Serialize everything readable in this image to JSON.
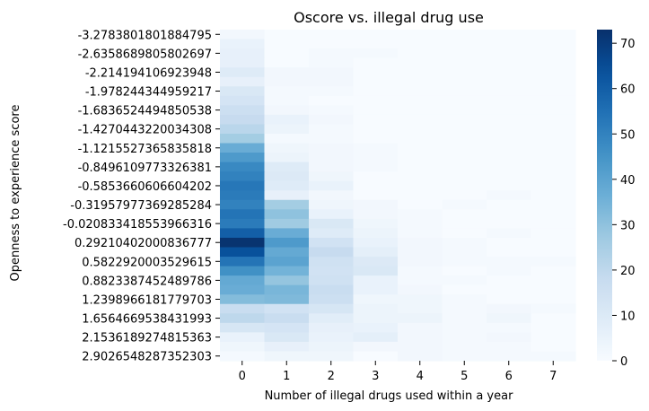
{
  "chart_data": {
    "type": "heatmap",
    "title": "Oscore vs. illegal drug use",
    "xlabel": "Number of illegal drugs used within a year",
    "ylabel": "Openness to experience score",
    "x_categories": [
      "0",
      "1",
      "2",
      "3",
      "4",
      "5",
      "6",
      "7"
    ],
    "y_tick_labels": [
      "-3.2783801801884795",
      "-2.6358689805802697",
      "-2.214194106923948",
      "-1.978244344959217",
      "-1.6836524494850538",
      "-1.4270443220034308",
      "-1.1215527365835818",
      "-0.8496109773326381",
      "-0.5853660606604202",
      "-0.31957977369285284",
      "-0.020833418553966316",
      "0.29210402000836777",
      "0.5822920003529615",
      "0.8823387452489786",
      "1.2398966181779703",
      "1.6564669538431993",
      "2.1536189274815363",
      "2.9026548287352303"
    ],
    "row_count": 35,
    "rows_per_tick": 2,
    "values": [
      [
        2,
        0,
        0,
        0,
        0,
        0,
        0,
        0
      ],
      [
        5,
        0,
        0,
        0,
        0,
        0,
        0,
        0
      ],
      [
        6,
        0,
        1,
        1,
        0,
        0,
        0,
        0
      ],
      [
        6,
        0,
        1,
        0,
        0,
        0,
        0,
        0
      ],
      [
        9,
        2,
        2,
        0,
        0,
        0,
        0,
        0
      ],
      [
        6,
        2,
        2,
        0,
        0,
        0,
        0,
        0
      ],
      [
        11,
        1,
        1,
        0,
        0,
        0,
        0,
        0
      ],
      [
        13,
        1,
        0,
        0,
        0,
        0,
        0,
        0
      ],
      [
        16,
        2,
        1,
        0,
        0,
        0,
        0,
        0
      ],
      [
        18,
        5,
        2,
        0,
        0,
        0,
        0,
        0
      ],
      [
        21,
        4,
        1,
        0,
        0,
        0,
        0,
        0
      ],
      [
        26,
        1,
        1,
        0,
        0,
        0,
        0,
        0
      ],
      [
        37,
        3,
        2,
        1,
        0,
        0,
        0,
        0
      ],
      [
        43,
        4,
        2,
        1,
        0,
        0,
        0,
        0
      ],
      [
        48,
        9,
        2,
        1,
        0,
        0,
        0,
        0
      ],
      [
        50,
        10,
        3,
        0,
        0,
        0,
        0,
        0
      ],
      [
        53,
        9,
        5,
        0,
        0,
        0,
        0,
        0
      ],
      [
        52,
        6,
        2,
        0,
        0,
        0,
        1,
        0
      ],
      [
        50,
        26,
        3,
        2,
        0,
        1,
        0,
        0
      ],
      [
        54,
        30,
        5,
        2,
        1,
        0,
        0,
        0
      ],
      [
        52,
        27,
        11,
        3,
        1,
        0,
        0,
        0
      ],
      [
        60,
        37,
        9,
        4,
        1,
        0,
        1,
        0
      ],
      [
        72,
        43,
        14,
        5,
        2,
        1,
        0,
        0
      ],
      [
        64,
        38,
        18,
        7,
        2,
        1,
        0,
        0
      ],
      [
        54,
        40,
        15,
        10,
        2,
        1,
        1,
        1
      ],
      [
        46,
        35,
        14,
        11,
        1,
        0,
        1,
        0
      ],
      [
        38,
        29,
        15,
        5,
        1,
        1,
        0,
        0
      ],
      [
        37,
        34,
        17,
        5,
        2,
        0,
        0,
        0
      ],
      [
        32,
        33,
        16,
        3,
        3,
        1,
        0,
        0
      ],
      [
        17,
        14,
        12,
        4,
        3,
        1,
        2,
        1
      ],
      [
        20,
        17,
        8,
        4,
        4,
        1,
        3,
        0
      ],
      [
        12,
        13,
        6,
        5,
        2,
        1,
        1,
        0
      ],
      [
        5,
        11,
        5,
        7,
        2,
        1,
        2,
        0
      ],
      [
        3,
        6,
        4,
        2,
        2,
        1,
        1,
        0
      ],
      [
        1,
        3,
        3,
        0,
        2,
        1,
        1,
        1
      ]
    ],
    "colormap": "Blues",
    "colorbar": {
      "min": 0,
      "max": 73,
      "ticks": [
        "0",
        "10",
        "20",
        "30",
        "40",
        "50",
        "60",
        "70"
      ]
    },
    "grid": false,
    "legend": "none"
  }
}
